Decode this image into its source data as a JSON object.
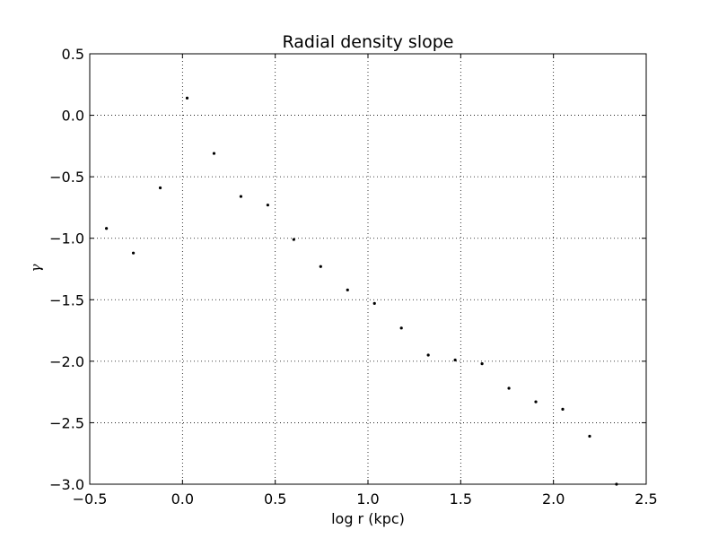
{
  "chart_data": {
    "type": "scatter",
    "title": "Radial density slope",
    "xlabel": "log r (kpc)",
    "ylabel": "γ",
    "xlim": [
      -0.5,
      2.5
    ],
    "ylim": [
      -3.0,
      0.5
    ],
    "xticks": [
      -0.5,
      0.0,
      0.5,
      1.0,
      1.5,
      2.0,
      2.5
    ],
    "xtick_labels": [
      "−0.5",
      "0.0",
      "0.5",
      "1.0",
      "1.5",
      "2.0",
      "2.5"
    ],
    "yticks": [
      0.5,
      0.0,
      -0.5,
      -1.0,
      -1.5,
      -2.0,
      -2.5,
      -3.0
    ],
    "ytick_labels": [
      "0.5",
      "0.0",
      "−0.5",
      "−1.0",
      "−1.5",
      "−2.0",
      "−2.5",
      "−3.0"
    ],
    "grid": true,
    "marker_color": "#000000",
    "series": [
      {
        "x": [
          -0.41,
          -0.265,
          -0.12,
          0.025,
          0.17,
          0.315,
          0.46,
          0.6,
          0.745,
          0.89,
          1.035,
          1.18,
          1.325,
          1.47,
          1.615,
          1.76,
          1.905,
          2.05,
          2.195,
          2.34
        ],
        "y": [
          -0.92,
          -1.12,
          -0.59,
          0.14,
          -0.31,
          -0.66,
          -0.73,
          -1.01,
          -1.23,
          -1.42,
          -1.53,
          -1.73,
          -1.95,
          -1.99,
          -2.02,
          -2.22,
          -2.33,
          -2.39,
          -2.61,
          -3.0
        ]
      }
    ]
  }
}
